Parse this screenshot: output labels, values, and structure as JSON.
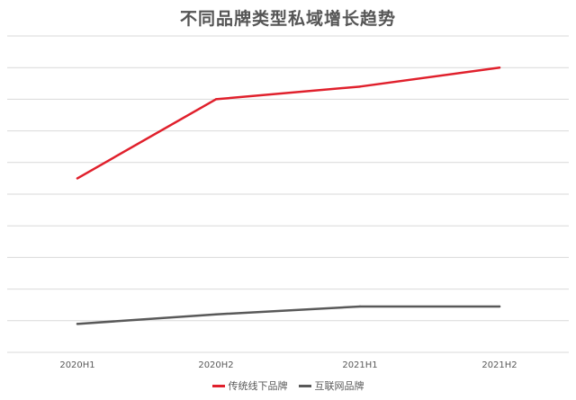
{
  "chart_data": {
    "type": "line",
    "title": "不同品牌类型私域增长趋势",
    "categories": [
      "2020H1",
      "2020H2",
      "2021H1",
      "2021H2"
    ],
    "ylim": [
      0,
      100
    ],
    "grid": true,
    "legend_position": "bottom",
    "series": [
      {
        "name": "传统线下品牌",
        "color": "#e0202c",
        "values": [
          55,
          80,
          84,
          90
        ]
      },
      {
        "name": "互联网品牌",
        "color": "#595959",
        "values": [
          9,
          12,
          14.5,
          14.5
        ]
      }
    ]
  }
}
